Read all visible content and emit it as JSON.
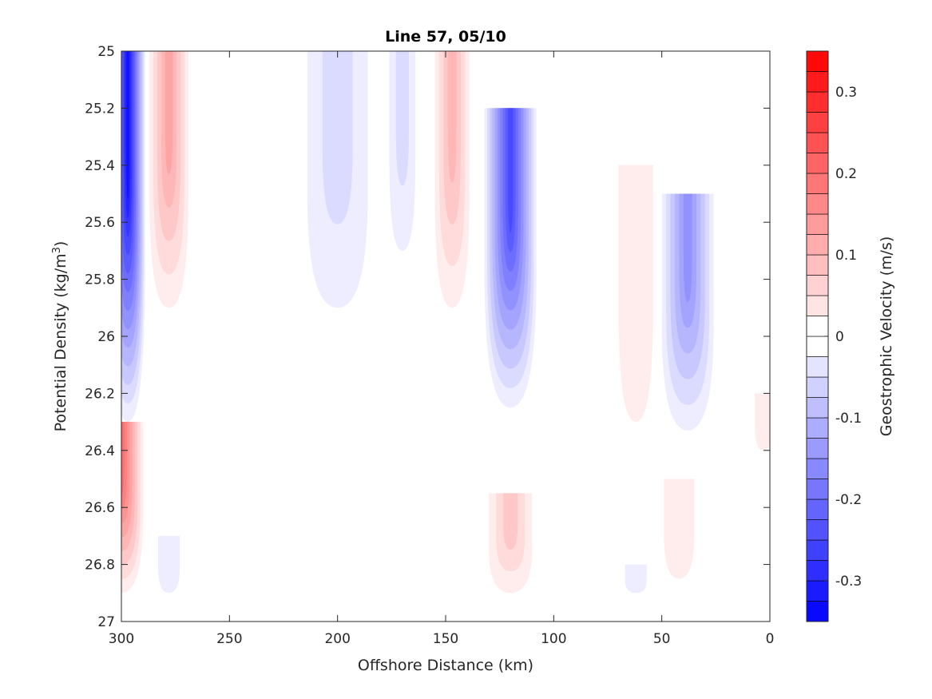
{
  "chart_data": {
    "type": "contour",
    "title": "Line 57, 05/10",
    "xlabel": "Offshore Distance (km)",
    "ylabel": "Potential Density (kg/m",
    "ylabel_sup": "3",
    "ylabel_close": ")",
    "xlim": [
      300,
      0
    ],
    "ylim": [
      25,
      27
    ],
    "x_reversed": true,
    "y_reversed": true,
    "xticks": [
      300,
      250,
      200,
      150,
      100,
      50,
      0
    ],
    "yticks": [
      25,
      25.2,
      25.4,
      25.6,
      25.8,
      26,
      26.2,
      26.4,
      26.6,
      26.8,
      27
    ],
    "ytick_labels": [
      "25",
      "25.2",
      "25.4",
      "25.6",
      "25.8",
      "26",
      "26.2",
      "26.4",
      "26.6",
      "26.8",
      "27"
    ],
    "colorbar": {
      "label": "Geostrophic Velocity (m/s)",
      "clim": [
        -0.35,
        0.35
      ],
      "step": 0.025,
      "ticks": [
        -0.3,
        -0.2,
        -0.1,
        0,
        0.1,
        0.2,
        0.3
      ],
      "tick_labels": [
        "-0.3",
        "-0.2",
        "-0.1",
        "0",
        "0.1",
        "0.2",
        "0.3"
      ]
    },
    "colors": {
      "negative": "#0000ff",
      "positive": "#ff0000",
      "zero": "#ffffff"
    },
    "features": [
      {
        "name": "blue-jet-300",
        "sign": -1,
        "x_center": 297,
        "x_width": 8,
        "y_top": 25.0,
        "y_bottom": 26.3,
        "peak": -0.33
      },
      {
        "name": "red-core-278",
        "sign": 1,
        "x_center": 278,
        "x_width": 9,
        "y_top": 25.0,
        "y_bottom": 25.9,
        "peak": 0.15
      },
      {
        "name": "blue-200",
        "sign": -1,
        "x_center": 200,
        "x_width": 14,
        "y_top": 25.0,
        "y_bottom": 25.9,
        "peak": -0.06
      },
      {
        "name": "blue-170",
        "sign": -1,
        "x_center": 170,
        "x_width": 6,
        "y_top": 25.0,
        "y_bottom": 25.7,
        "peak": -0.06
      },
      {
        "name": "red-147",
        "sign": 1,
        "x_center": 147,
        "x_width": 8,
        "y_top": 25.0,
        "y_bottom": 25.9,
        "peak": 0.12
      },
      {
        "name": "blue-jet-120",
        "sign": -1,
        "x_center": 120,
        "x_width": 12,
        "y_top": 25.2,
        "y_bottom": 26.25,
        "peak": -0.27
      },
      {
        "name": "red-62",
        "sign": 1,
        "x_center": 62,
        "x_width": 8,
        "y_top": 25.4,
        "y_bottom": 26.3,
        "peak": 0.04
      },
      {
        "name": "blue-jet-40",
        "sign": -1,
        "x_center": 38,
        "x_width": 12,
        "y_top": 25.5,
        "y_bottom": 26.33,
        "peak": -0.17
      },
      {
        "name": "red-deep-300",
        "sign": 1,
        "x_center": 300,
        "x_width": 10,
        "y_top": 26.3,
        "y_bottom": 26.9,
        "peak": 0.2
      },
      {
        "name": "red-deep-120",
        "sign": 1,
        "x_center": 120,
        "x_width": 10,
        "y_top": 26.55,
        "y_bottom": 26.9,
        "peak": 0.08
      },
      {
        "name": "red-deep-40",
        "sign": 1,
        "x_center": 42,
        "x_width": 7,
        "y_top": 26.5,
        "y_bottom": 26.85,
        "peak": 0.04
      },
      {
        "name": "red-edge-5",
        "sign": 1,
        "x_center": 3,
        "x_width": 4,
        "y_top": 26.2,
        "y_bottom": 26.4,
        "peak": 0.04
      },
      {
        "name": "blue-deep-278",
        "sign": -1,
        "x_center": 278,
        "x_width": 5,
        "y_top": 26.7,
        "y_bottom": 26.9,
        "peak": -0.04
      },
      {
        "name": "blue-deep-62",
        "sign": -1,
        "x_center": 62,
        "x_width": 5,
        "y_top": 26.8,
        "y_bottom": 26.9,
        "peak": -0.04
      }
    ]
  }
}
